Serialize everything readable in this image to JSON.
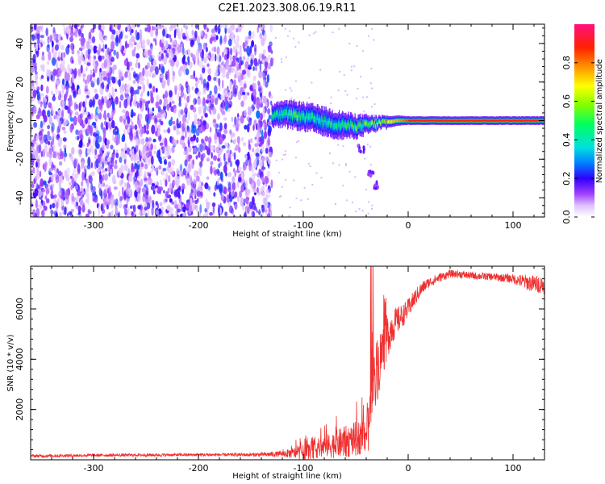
{
  "title": "C2E1.2023.308.06.19.R11",
  "colors": {
    "snr_line": "#f03030",
    "spectrogram_low": "#a050ff",
    "spectrogram_core": "#6a00ff"
  },
  "colorbar": {
    "label": "Normalized spectral amplitude",
    "ticks": [
      "0.0",
      "0.2",
      "0.4",
      "0.6",
      "0.8"
    ],
    "tick_values": [
      0.0,
      0.2,
      0.4,
      0.6,
      0.8
    ],
    "range": [
      0,
      1
    ]
  },
  "chart_data": [
    {
      "type": "heatmap",
      "name": "spectrogram",
      "xlabel": "Height of straight line (km)",
      "ylabel": "Frequency (Hz)",
      "xlim": [
        -360,
        130
      ],
      "ylim": [
        -50,
        50
      ],
      "xticks": [
        -300,
        -200,
        -100,
        0,
        100
      ],
      "xtick_labels": [
        "-300",
        "-200",
        "-100",
        "0",
        "100"
      ],
      "yticks": [
        -40,
        -20,
        0,
        20,
        40
      ],
      "ytick_labels": [
        "-40",
        "-20",
        "0",
        "20",
        "40"
      ],
      "noise_region": {
        "x": [
          -360,
          -130
        ],
        "y": [
          -50,
          50
        ],
        "amplitude": [
          0.0,
          0.2
        ]
      },
      "signal_track": [
        {
          "x": -130,
          "y": 3,
          "width": 2.5,
          "amplitude": 0.45
        },
        {
          "x": -110,
          "y": 3,
          "width": 3,
          "amplitude": 0.5
        },
        {
          "x": -90,
          "y": 1,
          "width": 3,
          "amplitude": 0.45
        },
        {
          "x": -70,
          "y": -2,
          "width": 3,
          "amplitude": 0.45
        },
        {
          "x": -50,
          "y": -3,
          "width": 2.5,
          "amplitude": 0.5
        },
        {
          "x": -30,
          "y": -1.5,
          "width": 1.5,
          "amplitude": 0.6
        },
        {
          "x": -10,
          "y": 0,
          "width": 1.2,
          "amplitude": 0.75
        },
        {
          "x": 0,
          "y": 0,
          "width": 1.0,
          "amplitude": 0.85
        },
        {
          "x": 50,
          "y": 0,
          "width": 1.0,
          "amplitude": 0.9
        },
        {
          "x": 100,
          "y": 0,
          "width": 1.0,
          "amplitude": 0.9
        },
        {
          "x": 130,
          "y": 0,
          "width": 1.0,
          "amplitude": 0.85
        }
      ],
      "faint_branch": [
        {
          "x": -60,
          "y": -8
        },
        {
          "x": -45,
          "y": -15
        },
        {
          "x": -35,
          "y": -28
        },
        {
          "x": -30,
          "y": -33
        }
      ]
    },
    {
      "type": "line",
      "name": "snr",
      "xlabel": "Height of straight line (km)",
      "ylabel": "SNR (10 * v/v)",
      "xlim": [
        -360,
        130
      ],
      "ylim": [
        0,
        7700
      ],
      "xticks": [
        -300,
        -200,
        -100,
        0,
        100
      ],
      "xtick_labels": [
        "-300",
        "-200",
        "-100",
        "0",
        "100"
      ],
      "yticks": [
        2000,
        4000,
        6000
      ],
      "ytick_labels": [
        "2000",
        "4000",
        "6000"
      ],
      "series": [
        {
          "x": [
            -360,
            -300,
            -250,
            -200,
            -150,
            -120,
            -100,
            -80,
            -60,
            -45,
            -38,
            -35,
            -30,
            -25,
            -20,
            -15,
            -10,
            -5,
            0,
            5,
            10,
            15,
            20,
            30,
            40,
            50,
            60,
            80,
            100,
            110,
            120,
            130
          ],
          "y": [
            150,
            180,
            190,
            200,
            200,
            230,
            300,
            520,
            700,
            900,
            1200,
            2300,
            3500,
            4300,
            4900,
            5300,
            5550,
            5750,
            6000,
            6350,
            6650,
            6900,
            7050,
            7250,
            7400,
            7380,
            7320,
            7280,
            7200,
            7080,
            7000,
            6950
          ],
          "noise_amplitude": [
            60,
            60,
            60,
            60,
            70,
            120,
            300,
            450,
            650,
            700,
            900,
            1200,
            1300,
            1100,
            900,
            700,
            550,
            450,
            400,
            350,
            300,
            250,
            200,
            180,
            150,
            150,
            150,
            150,
            180,
            300,
            350,
            350
          ]
        }
      ]
    }
  ]
}
